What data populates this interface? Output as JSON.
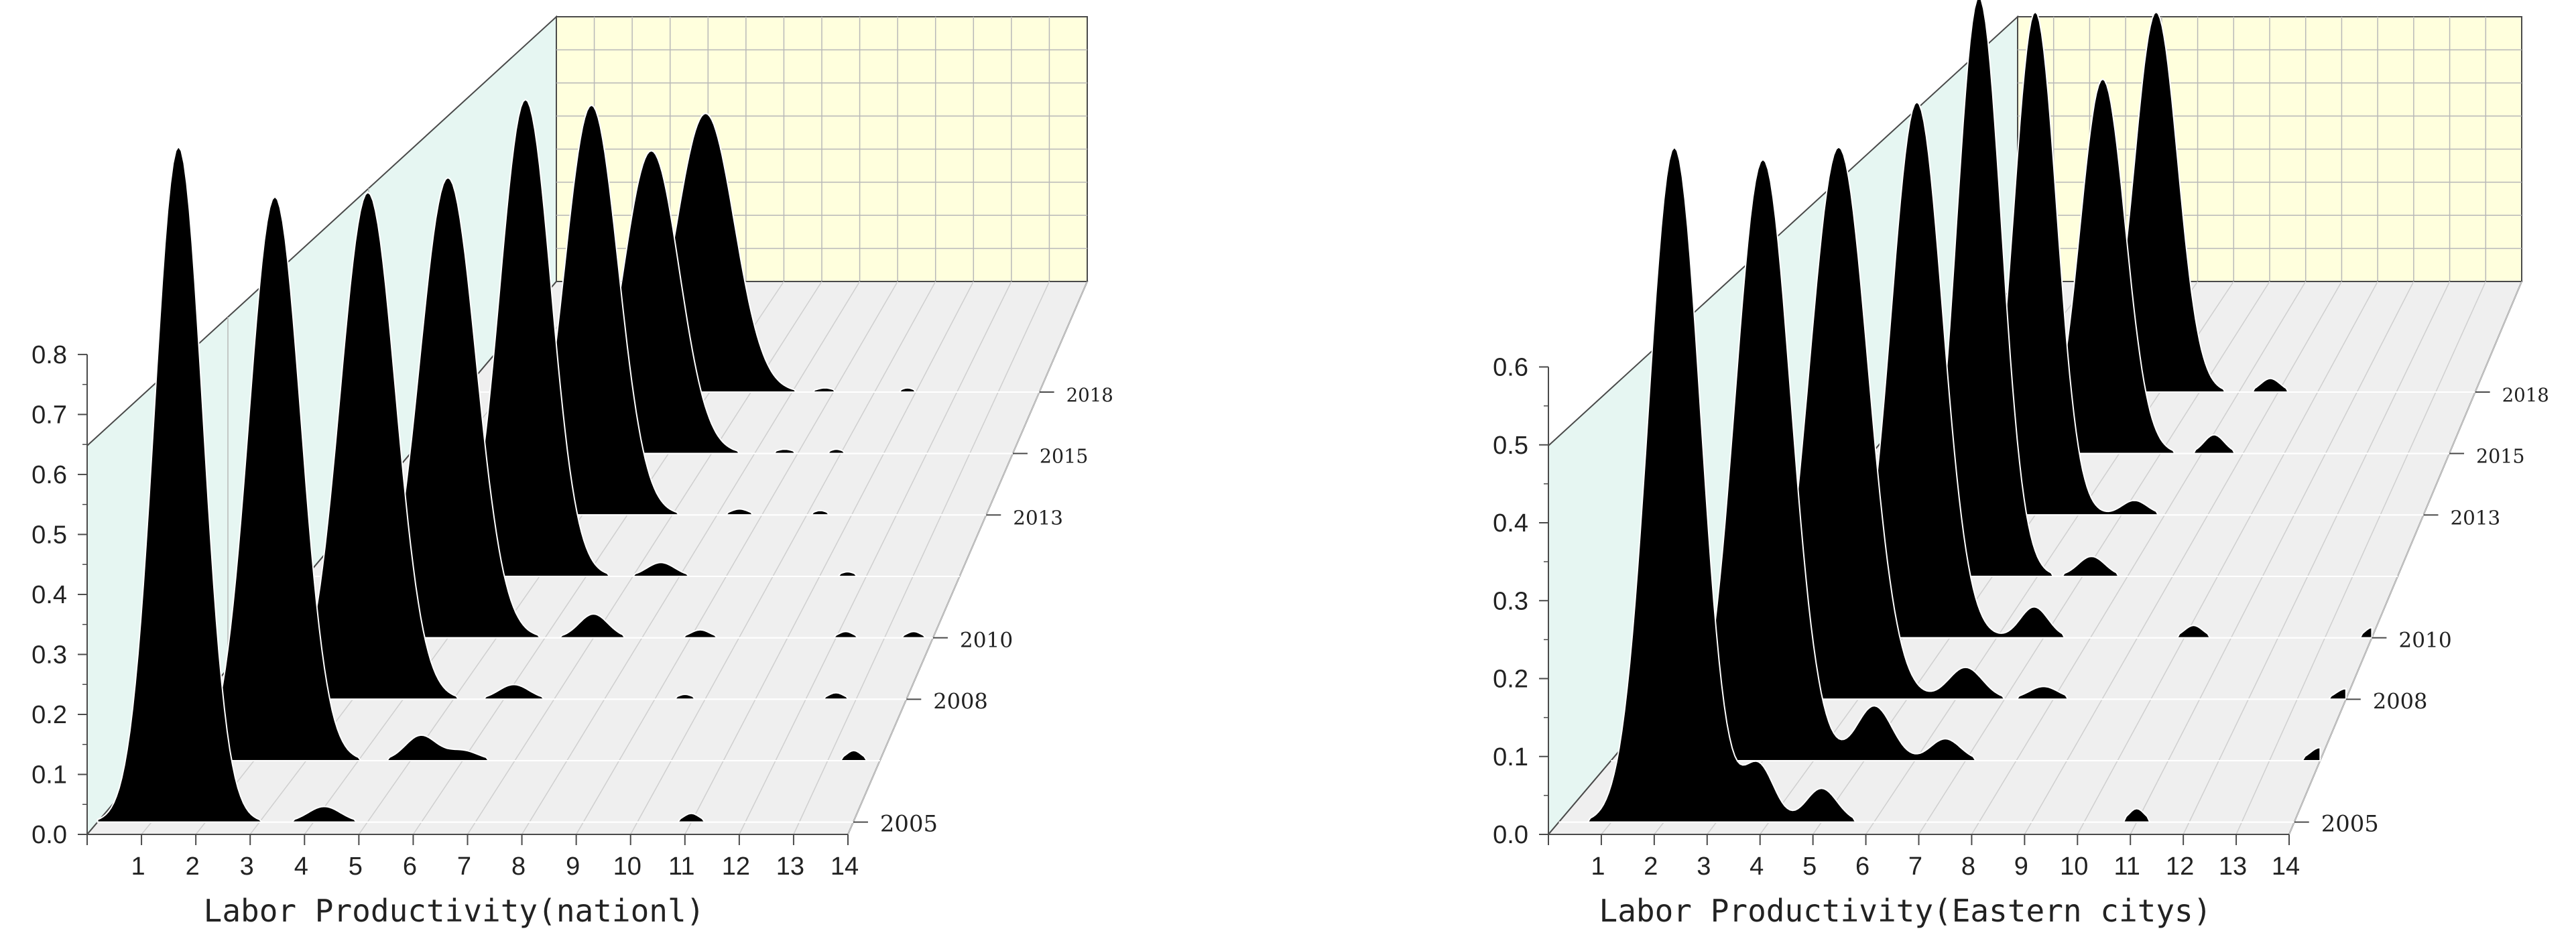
{
  "chart_data": [
    {
      "type": "3d-waterfall-density",
      "xlabel": "Labor Productivity(nationl)",
      "x_ticks": [
        "1",
        "2",
        "3",
        "4",
        "5",
        "6",
        "7",
        "8",
        "9",
        "10",
        "11",
        "12",
        "13",
        "14"
      ],
      "xlim": [
        0,
        14
      ],
      "y_ticks": [
        "0.0",
        "0.1",
        "0.2",
        "0.3",
        "0.4",
        "0.5",
        "0.6",
        "0.7",
        "0.8"
      ],
      "ylim": [
        0,
        0.8
      ],
      "year_labels": [
        "2005",
        "2008",
        "2010",
        "2013",
        "2015",
        "2018"
      ],
      "series": [
        {
          "label_index": 0,
          "peaks": [
            [
              1.5,
              0.78,
              0.45
            ],
            [
              4.2,
              0.018,
              0.3
            ],
            [
              11.0,
              0.01,
              0.15
            ]
          ]
        },
        {
          "label_index": null,
          "peaks": [
            [
              2.4,
              0.67,
              0.5
            ],
            [
              5.2,
              0.03,
              0.3
            ],
            [
              6.0,
              0.012,
              0.3
            ],
            [
              13.5,
              0.012,
              0.15
            ]
          ]
        },
        {
          "label_index": 1,
          "peaks": [
            [
              3.3,
              0.62,
              0.55
            ],
            [
              6.2,
              0.018,
              0.3
            ],
            [
              9.6,
              0.006,
              0.15
            ],
            [
              12.6,
              0.008,
              0.15
            ]
          ]
        },
        {
          "label_index": 2,
          "peaks": [
            [
              4.0,
              0.58,
              0.58
            ],
            [
              7.0,
              0.03,
              0.3
            ],
            [
              9.2,
              0.01,
              0.2
            ],
            [
              12.2,
              0.008,
              0.15
            ],
            [
              13.6,
              0.008,
              0.15
            ]
          ]
        },
        {
          "label_index": null,
          "peaks": [
            [
              4.7,
              0.62,
              0.55
            ],
            [
              7.6,
              0.018,
              0.3
            ],
            [
              11.6,
              0.006,
              0.15
            ]
          ]
        },
        {
          "label_index": 3,
          "peaks": [
            [
              5.2,
              0.55,
              0.6
            ],
            [
              8.5,
              0.008,
              0.2
            ],
            [
              10.3,
              0.006,
              0.15
            ]
          ]
        },
        {
          "label_index": 4,
          "peaks": [
            [
              5.6,
              0.42,
              0.65
            ],
            [
              8.7,
              0.006,
              0.2
            ],
            [
              9.9,
              0.006,
              0.15
            ]
          ]
        },
        {
          "label_index": 5,
          "peaks": [
            [
              5.9,
              0.4,
              0.7
            ],
            [
              8.8,
              0.006,
              0.2
            ],
            [
              10.8,
              0.006,
              0.15
            ]
          ]
        }
      ]
    },
    {
      "type": "3d-waterfall-density",
      "xlabel": "Labor Productivity(Eastern citys)",
      "x_ticks": [
        "1",
        "2",
        "3",
        "4",
        "5",
        "6",
        "7",
        "8",
        "9",
        "10",
        "11",
        "12",
        "13",
        "14"
      ],
      "xlim": [
        0,
        14
      ],
      "y_ticks": [
        "0.0",
        "0.1",
        "0.2",
        "0.3",
        "0.4",
        "0.5",
        "0.6"
      ],
      "ylim": [
        0,
        0.6
      ],
      "year_labels": [
        "2005",
        "2008",
        "2010",
        "2013",
        "2015",
        "2018"
      ],
      "series": [
        {
          "label_index": 0,
          "peaks": [
            [
              2.2,
              0.6,
              0.5
            ],
            [
              3.8,
              0.05,
              0.3
            ],
            [
              5.0,
              0.03,
              0.3
            ],
            [
              11.0,
              0.012,
              0.15
            ]
          ]
        },
        {
          "label_index": null,
          "peaks": [
            [
              3.0,
              0.55,
              0.55
            ],
            [
              5.2,
              0.05,
              0.35
            ],
            [
              6.6,
              0.02,
              0.3
            ],
            [
              14.0,
              0.012,
              0.2
            ]
          ]
        },
        {
          "label_index": 1,
          "peaks": [
            [
              3.6,
              0.52,
              0.6
            ],
            [
              6.2,
              0.03,
              0.35
            ],
            [
              7.8,
              0.012,
              0.3
            ],
            [
              14.0,
              0.01,
              0.2
            ]
          ]
        },
        {
          "label_index": 2,
          "peaks": [
            [
              4.3,
              0.52,
              0.55
            ],
            [
              6.8,
              0.03,
              0.3
            ],
            [
              10.2,
              0.012,
              0.2
            ],
            [
              14.0,
              0.01,
              0.15
            ]
          ]
        },
        {
          "label_index": null,
          "peaks": [
            [
              4.7,
              0.58,
              0.5
            ],
            [
              7.2,
              0.02,
              0.3
            ]
          ]
        },
        {
          "label_index": 3,
          "peaks": [
            [
              5.0,
              0.52,
              0.5
            ],
            [
              7.3,
              0.015,
              0.3
            ]
          ]
        },
        {
          "label_index": 4,
          "peaks": [
            [
              5.6,
              0.4,
              0.55
            ],
            [
              8.3,
              0.02,
              0.25
            ]
          ]
        },
        {
          "label_index": 5,
          "peaks": [
            [
              5.9,
              0.42,
              0.55
            ],
            [
              8.8,
              0.015,
              0.25
            ]
          ]
        }
      ]
    }
  ],
  "colors": {
    "curve_fill": "#000000",
    "curve_edge": "#ffffff",
    "floor": "#efefef",
    "back_wall": "#ffffdd",
    "side_wall": "#e6f6f2",
    "grid": "#b8b8b8",
    "axis": "#4a4a4a"
  }
}
